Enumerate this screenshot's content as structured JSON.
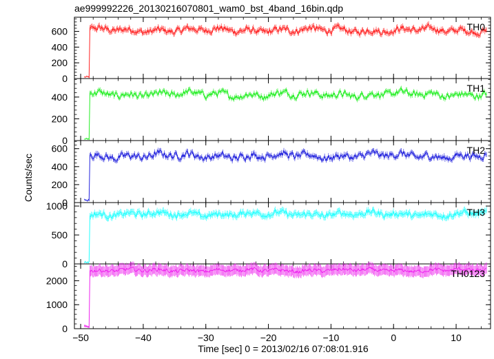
{
  "title": "ae999992226_20130216070801_wam0_bst_4band_16bin.qdp",
  "ylabel": "Counts/sec",
  "xlabel": "Time [sec] 0 = 2013/02/16 07:08:01.916",
  "colors": {
    "TH0": "#ff2222",
    "TH1": "#22ee22",
    "TH2": "#2222dd",
    "TH3": "#22ffff",
    "TH0123": "#ee22ee"
  },
  "chart_data": {
    "type": "line",
    "title": "ae999992226_20130216070801_wam0_bst_4band_16bin.qdp",
    "xlabel": "Time [sec] 0 = 2013/02/16 07:08:01.916",
    "ylabel": "Counts/sec",
    "xlim": [
      -51,
      15.5
    ],
    "x_ticks": [
      -50,
      -40,
      -30,
      -20,
      -10,
      0,
      10
    ],
    "x_tick_labels": [
      "−50",
      "−40",
      "−30",
      "−20",
      "−10",
      "0",
      "10"
    ],
    "grid": false,
    "panels": [
      {
        "name": "TH0",
        "ylim": [
          0,
          780
        ],
        "y_ticks": [
          0,
          200,
          400,
          600
        ],
        "onset_x": -48.6,
        "pre_level": 20,
        "level": 615,
        "noise": 45
      },
      {
        "name": "TH1",
        "ylim": [
          0,
          570
        ],
        "y_ticks": [
          0,
          200,
          400
        ],
        "onset_x": -48.6,
        "pre_level": 15,
        "level": 425,
        "noise": 35
      },
      {
        "name": "TH2",
        "ylim": [
          0,
          690
        ],
        "y_ticks": [
          0,
          200,
          400,
          600
        ],
        "onset_x": -48.6,
        "pre_level": 25,
        "level": 520,
        "noise": 45
      },
      {
        "name": "TH3",
        "ylim": [
          0,
          1060
        ],
        "y_ticks": [
          0,
          500,
          1000
        ],
        "onset_x": -48.6,
        "pre_level": 30,
        "level": 860,
        "noise": 55
      },
      {
        "name": "TH0123",
        "ylim": [
          0,
          2700
        ],
        "y_ticks": [
          0,
          1000,
          2000
        ],
        "onset_x": -48.6,
        "pre_level": 100,
        "level": 2430,
        "noise": 90
      }
    ]
  }
}
